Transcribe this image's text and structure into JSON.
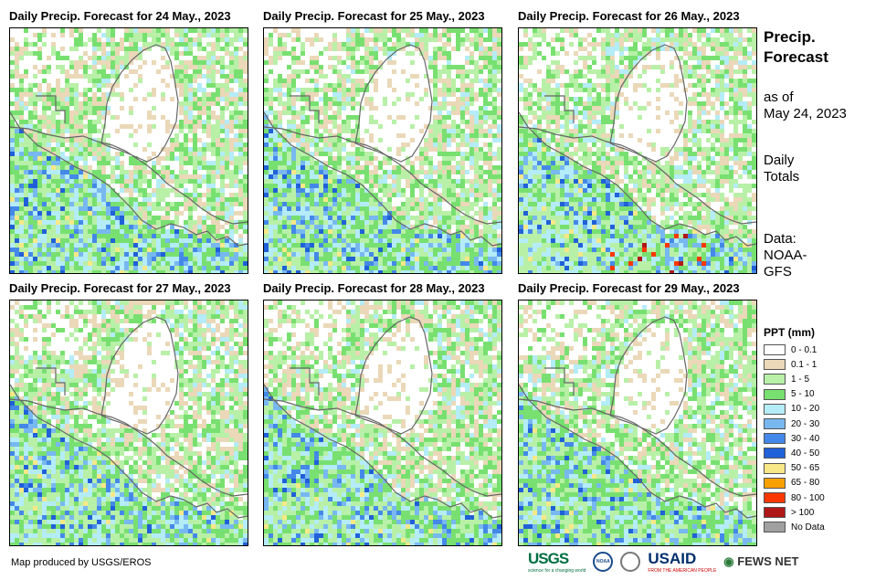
{
  "panels": [
    {
      "title": "Daily Precip. Forecast for 24 May., 2023",
      "day": 24
    },
    {
      "title": "Daily Precip. Forecast for 25 May., 2023",
      "day": 25
    },
    {
      "title": "Daily Precip. Forecast for 26 May., 2023",
      "day": 26
    },
    {
      "title": "Daily Precip. Forecast for 27 May., 2023",
      "day": 27
    },
    {
      "title": "Daily Precip. Forecast for 28 May., 2023",
      "day": 28
    },
    {
      "title": "Daily Precip. Forecast for 29 May., 2023",
      "day": 29
    }
  ],
  "sidebar": {
    "title_line1": "Precip.",
    "title_line2": "Forecast",
    "asof_line1": "as of",
    "asof_line2": "May 24, 2023",
    "totals_line1": "Daily",
    "totals_line2": "Totals",
    "data_line1": "Data:",
    "data_line2": "NOAA-",
    "data_line3": "GFS"
  },
  "legend": {
    "title": "PPT (mm)",
    "items": [
      {
        "label": "0 - 0.1",
        "color": "#ffffff"
      },
      {
        "label": "0.1 - 1",
        "color": "#ead8b8"
      },
      {
        "label": "1 - 5",
        "color": "#b8f0a8"
      },
      {
        "label": "5 - 10",
        "color": "#78e070"
      },
      {
        "label": "10 - 20",
        "color": "#b4ecf8"
      },
      {
        "label": "20 - 30",
        "color": "#78b8f0"
      },
      {
        "label": "30 - 40",
        "color": "#4488e8"
      },
      {
        "label": "40 - 50",
        "color": "#2060d8"
      },
      {
        "label": "50 - 65",
        "color": "#f8e888"
      },
      {
        "label": "65 - 80",
        "color": "#f8a000"
      },
      {
        "label": "80 - 100",
        "color": "#f83800"
      },
      {
        "label": "> 100",
        "color": "#b01818"
      },
      {
        "label": "No Data",
        "color": "#a0a0a0"
      }
    ]
  },
  "footer": {
    "credit": "Map produced by USGS/EROS",
    "logo_usgs": "USGS",
    "logo_usgs_tag": "science for a changing world",
    "logo_noaa": "NOAA",
    "logo_usaid": "USAID",
    "logo_usaid_tag": "FROM THE AMERICAN PEOPLE",
    "logo_fews": "FEWS NET"
  }
}
